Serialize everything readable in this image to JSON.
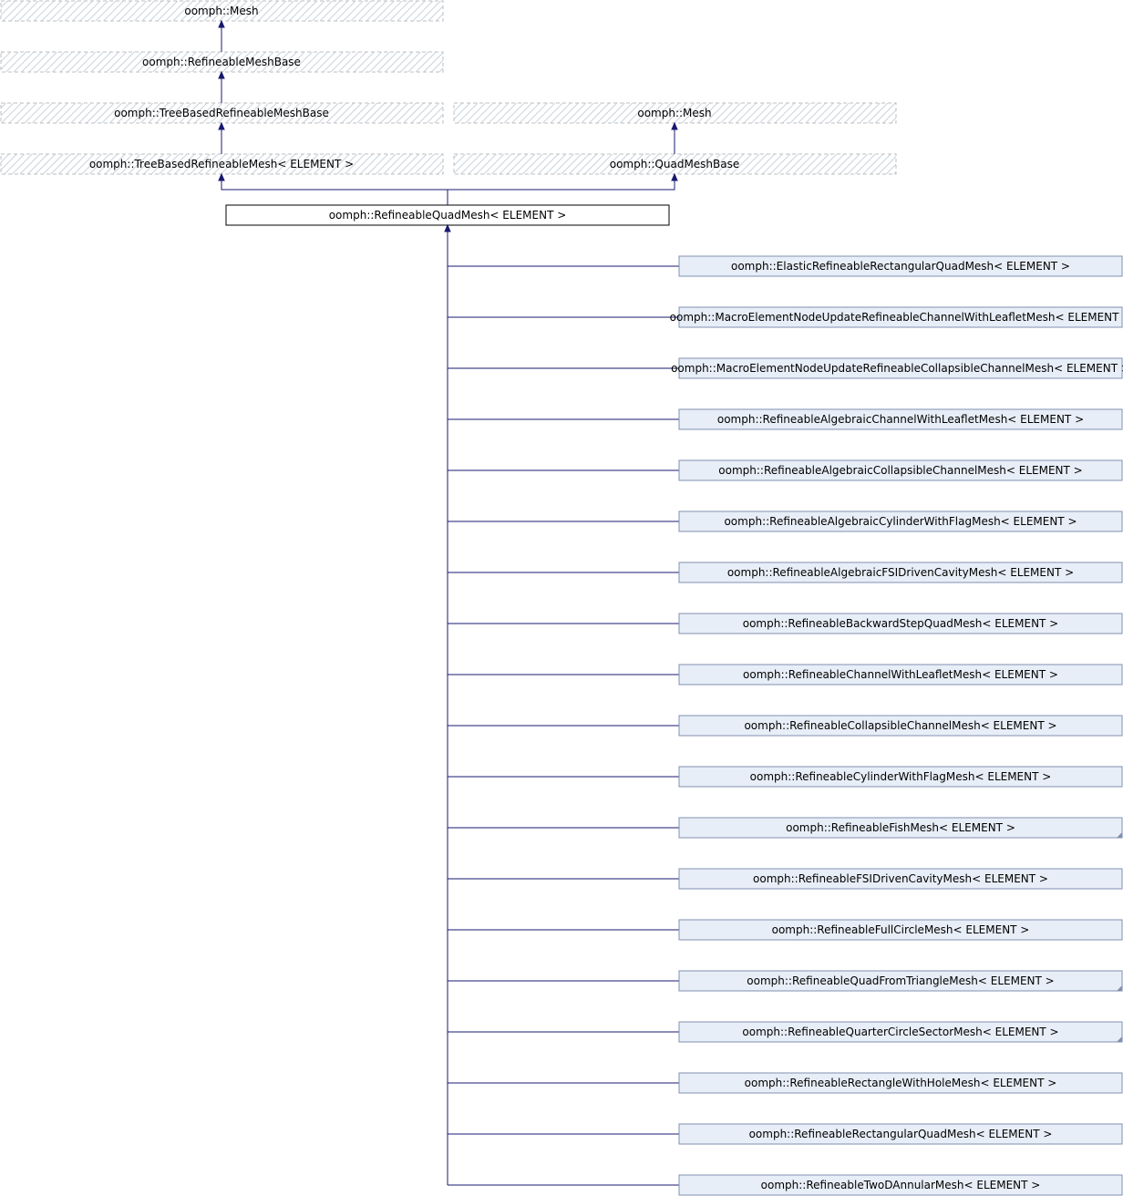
{
  "diagram": {
    "type": "class-inheritance-graph",
    "colors": {
      "edge": "#191970",
      "box_border_external": "#bfbfbf",
      "box_border_main": "#000000",
      "box_fill_child": "#e8eef7",
      "box_border_child": "#8090b0",
      "hatch": "#c8d2dc"
    },
    "ancestors": [
      {
        "id": "mesh_a",
        "label": "oomph::Mesh"
      },
      {
        "id": "refineable_mesh_base",
        "label": "oomph::RefineableMeshBase"
      },
      {
        "id": "tree_based_refineable_mesh_base",
        "label": "oomph::TreeBasedRefineableMeshBase"
      },
      {
        "id": "mesh_b",
        "label": "oomph::Mesh"
      },
      {
        "id": "tree_based_refineable_mesh",
        "label": "oomph::TreeBasedRefineableMesh< ELEMENT >"
      },
      {
        "id": "quad_mesh_base",
        "label": "oomph::QuadMeshBase"
      }
    ],
    "main": {
      "id": "refineable_quad_mesh",
      "label": "oomph::RefineableQuadMesh< ELEMENT >"
    },
    "children": [
      {
        "label": "oomph::ElasticRefineableRectangularQuadMesh< ELEMENT >",
        "has_more": false
      },
      {
        "label": "oomph::MacroElementNodeUpdateRefineableChannelWithLeafletMesh< ELEMENT >",
        "has_more": false
      },
      {
        "label": "oomph::MacroElementNodeUpdateRefineableCollapsibleChannelMesh< ELEMENT >",
        "has_more": false
      },
      {
        "label": "oomph::RefineableAlgebraicChannelWithLeafletMesh< ELEMENT >",
        "has_more": false
      },
      {
        "label": "oomph::RefineableAlgebraicCollapsibleChannelMesh< ELEMENT >",
        "has_more": false
      },
      {
        "label": "oomph::RefineableAlgebraicCylinderWithFlagMesh< ELEMENT >",
        "has_more": false
      },
      {
        "label": "oomph::RefineableAlgebraicFSIDrivenCavityMesh< ELEMENT >",
        "has_more": false
      },
      {
        "label": "oomph::RefineableBackwardStepQuadMesh< ELEMENT >",
        "has_more": false
      },
      {
        "label": "oomph::RefineableChannelWithLeafletMesh< ELEMENT >",
        "has_more": false
      },
      {
        "label": "oomph::RefineableCollapsibleChannelMesh< ELEMENT >",
        "has_more": false
      },
      {
        "label": "oomph::RefineableCylinderWithFlagMesh< ELEMENT >",
        "has_more": false
      },
      {
        "label": "oomph::RefineableFishMesh< ELEMENT >",
        "has_more": true
      },
      {
        "label": "oomph::RefineableFSIDrivenCavityMesh< ELEMENT >",
        "has_more": false
      },
      {
        "label": "oomph::RefineableFullCircleMesh< ELEMENT >",
        "has_more": false
      },
      {
        "label": "oomph::RefineableQuadFromTriangleMesh< ELEMENT >",
        "has_more": true
      },
      {
        "label": "oomph::RefineableQuarterCircleSectorMesh< ELEMENT >",
        "has_more": true
      },
      {
        "label": "oomph::RefineableRectangleWithHoleMesh< ELEMENT >",
        "has_more": false
      },
      {
        "label": "oomph::RefineableRectangularQuadMesh< ELEMENT >",
        "has_more": false
      },
      {
        "label": "oomph::RefineableTwoDAnnularMesh< ELEMENT >",
        "has_more": false
      }
    ]
  }
}
